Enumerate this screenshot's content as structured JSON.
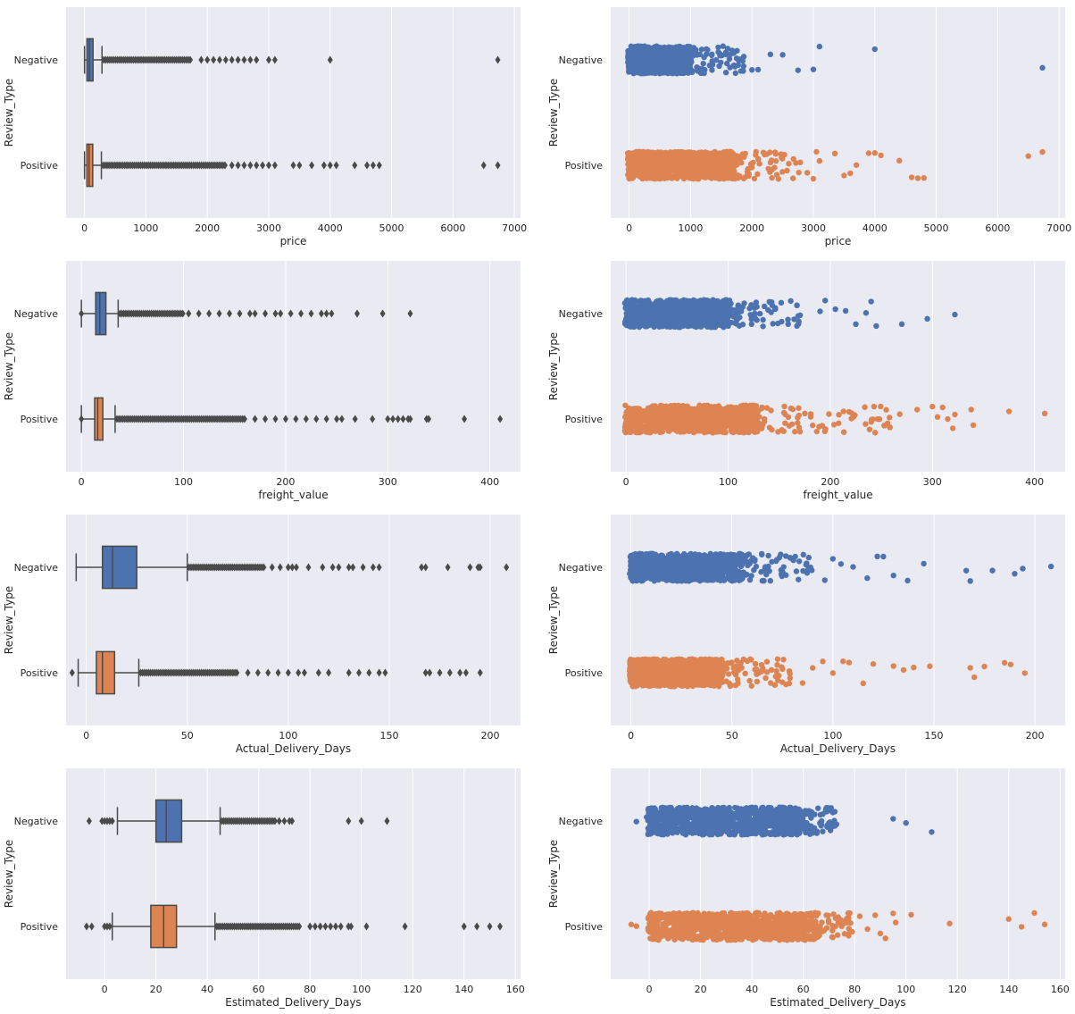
{
  "colors": {
    "negative": "#4c72b0",
    "positive": "#dd8452",
    "axes_bg": "#eaeaf2",
    "grid": "#ffffff",
    "line": "#4a4a4a"
  },
  "chart_data": [
    {
      "type": "box",
      "xlabel": "price",
      "ylabel": "Review_Type",
      "categories": [
        "Negative",
        "Positive"
      ],
      "xlim": [
        -300,
        7100
      ],
      "xticks": [
        0,
        1000,
        2000,
        3000,
        4000,
        5000,
        6000,
        7000
      ],
      "grid": true,
      "boxes": [
        {
          "name": "Negative",
          "whislo": 0.85,
          "q1": 40,
          "median": 79,
          "q3": 139,
          "whishi": 285,
          "dense_to": 1750,
          "outliers": [
            1900,
            2000,
            2100,
            2200,
            2300,
            2400,
            2500,
            2600,
            2700,
            2800,
            3000,
            3100,
            4000,
            6730
          ]
        },
        {
          "name": "Positive",
          "whislo": 0.85,
          "q1": 39,
          "median": 74,
          "q3": 134,
          "whishi": 275,
          "dense_to": 2300,
          "outliers": [
            2400,
            2500,
            2600,
            2700,
            2800,
            2900,
            3000,
            3100,
            3400,
            3500,
            3700,
            3900,
            4000,
            4100,
            4400,
            4600,
            4700,
            4800,
            6500,
            6730
          ]
        }
      ]
    },
    {
      "type": "strip",
      "xlabel": "price",
      "ylabel": "Review_Type",
      "categories": [
        "Negative",
        "Positive"
      ],
      "xlim": [
        -300,
        7100
      ],
      "xticks": [
        0,
        1000,
        2000,
        3000,
        4000,
        5000,
        6000,
        7000
      ],
      "grid": true,
      "series": [
        {
          "name": "Negative",
          "dense_to": 1000,
          "sparse_to": 1900,
          "extra": [
            2000,
            2100,
            2300,
            2500,
            2750,
            3000,
            3100,
            4000,
            6730
          ]
        },
        {
          "name": "Positive",
          "dense_to": 1700,
          "sparse_to": 2800,
          "extra": [
            2900,
            3000,
            3050,
            3100,
            3350,
            3500,
            3600,
            3700,
            3900,
            4000,
            4100,
            4400,
            4600,
            4700,
            4800,
            6500,
            6730
          ]
        }
      ]
    },
    {
      "type": "box",
      "xlabel": "freight_value",
      "ylabel": "Review_Type",
      "categories": [
        "Negative",
        "Positive"
      ],
      "xlim": [
        -15,
        430
      ],
      "xticks": [
        0,
        100,
        200,
        300,
        400
      ],
      "grid": true,
      "boxes": [
        {
          "name": "Negative",
          "whislo": 0,
          "q1": 14,
          "median": 18,
          "q3": 24,
          "whishi": 36,
          "dense_to": 100,
          "outliers": [
            0,
            105,
            115,
            125,
            135,
            145,
            155,
            165,
            170,
            180,
            190,
            195,
            205,
            215,
            225,
            235,
            240,
            245,
            270,
            295,
            322
          ]
        },
        {
          "name": "Positive",
          "whislo": 0,
          "q1": 13,
          "median": 16,
          "q3": 21,
          "whishi": 33,
          "dense_to": 160,
          "outliers": [
            0,
            170,
            180,
            190,
            200,
            210,
            220,
            230,
            240,
            250,
            255,
            268,
            285,
            300,
            305,
            310,
            315,
            320,
            322,
            338,
            340,
            375,
            410
          ]
        }
      ]
    },
    {
      "type": "strip",
      "xlabel": "freight_value",
      "ylabel": "Review_Type",
      "categories": [
        "Negative",
        "Positive"
      ],
      "xlim": [
        -15,
        430
      ],
      "xticks": [
        0,
        100,
        200,
        300,
        400
      ],
      "grid": true,
      "series": [
        {
          "name": "Negative",
          "dense_to": 100,
          "sparse_to": 175,
          "extra": [
            190,
            195,
            205,
            215,
            225,
            235,
            240,
            245,
            270,
            295,
            322
          ]
        },
        {
          "name": "Positive",
          "dense_to": 130,
          "sparse_to": 260,
          "extra": [
            268,
            285,
            300,
            305,
            310,
            315,
            320,
            322,
            338,
            340,
            375,
            410
          ]
        }
      ]
    },
    {
      "type": "box",
      "xlabel": "Actual_Delivery_Days",
      "ylabel": "Review_Type",
      "categories": [
        "Negative",
        "Positive"
      ],
      "xlim": [
        -10,
        215
      ],
      "xticks": [
        0,
        50,
        100,
        150,
        200
      ],
      "grid": true,
      "boxes": [
        {
          "name": "Negative",
          "whislo": -5,
          "q1": 8,
          "median": 13,
          "q3": 25,
          "whishi": 50,
          "dense_to": 88,
          "outliers": [
            92,
            96,
            100,
            102,
            104,
            110,
            117,
            122,
            125,
            130,
            132,
            137,
            142,
            145,
            166,
            168,
            179,
            190,
            194,
            195,
            208
          ]
        },
        {
          "name": "Positive",
          "whislo": -4,
          "q1": 5,
          "median": 8,
          "q3": 14,
          "whishi": 26,
          "dense_to": 75,
          "outliers": [
            -7,
            80,
            85,
            90,
            95,
            100,
            105,
            108,
            115,
            120,
            130,
            135,
            140,
            145,
            148,
            168,
            170,
            175,
            180,
            185,
            188,
            195
          ]
        }
      ]
    },
    {
      "type": "strip",
      "xlabel": "Actual_Delivery_Days",
      "ylabel": "Review_Type",
      "categories": [
        "Negative",
        "Positive"
      ],
      "xlim": [
        -10,
        215
      ],
      "xticks": [
        0,
        50,
        100,
        150,
        200
      ],
      "grid": true,
      "series": [
        {
          "name": "Negative",
          "dense_to": 55,
          "sparse_to": 90,
          "extra": [
            96,
            100,
            104,
            110,
            117,
            122,
            125,
            130,
            137,
            145,
            166,
            168,
            179,
            190,
            194,
            208
          ]
        },
        {
          "name": "Positive",
          "dense_to": 45,
          "sparse_to": 80,
          "extra": [
            85,
            90,
            95,
            100,
            105,
            108,
            115,
            120,
            130,
            135,
            140,
            148,
            168,
            170,
            175,
            185,
            188,
            195
          ]
        }
      ]
    },
    {
      "type": "box",
      "xlabel": "Estimated_Delivery_Days",
      "ylabel": "Review_Type",
      "categories": [
        "Negative",
        "Positive"
      ],
      "xlim": [
        -15,
        162
      ],
      "xticks": [
        0,
        20,
        40,
        60,
        80,
        100,
        120,
        140,
        160
      ],
      "grid": true,
      "boxes": [
        {
          "name": "Negative",
          "whislo": 5,
          "q1": 20,
          "median": 24,
          "q3": 30,
          "whishi": 45,
          "dense_to": 67,
          "outliers": [
            -6,
            -1,
            0,
            1,
            2,
            3,
            68,
            70,
            72,
            73,
            95,
            100,
            110
          ]
        },
        {
          "name": "Positive",
          "whislo": 3,
          "q1": 18,
          "median": 23,
          "q3": 28,
          "whishi": 43,
          "dense_to": 76,
          "outliers": [
            -7,
            -5,
            0,
            1,
            2,
            80,
            82,
            84,
            86,
            88,
            90,
            92,
            95,
            96,
            102,
            117,
            140,
            145,
            150,
            154
          ]
        }
      ]
    },
    {
      "type": "strip",
      "xlabel": "Estimated_Delivery_Days",
      "ylabel": "Review_Type",
      "categories": [
        "Negative",
        "Positive"
      ],
      "xlim": [
        -15,
        162
      ],
      "xticks": [
        0,
        20,
        40,
        60,
        80,
        100,
        120,
        140,
        160
      ],
      "grid": true,
      "series": [
        {
          "name": "Negative",
          "dense_to": 58,
          "sparse_to": 73,
          "extra": [
            -5,
            -1,
            95,
            100,
            110
          ]
        },
        {
          "name": "Positive",
          "dense_to": 63,
          "sparse_to": 80,
          "extra": [
            -7,
            -5,
            82,
            85,
            88,
            90,
            92,
            95,
            96,
            102,
            117,
            140,
            145,
            150,
            154
          ]
        }
      ]
    }
  ]
}
